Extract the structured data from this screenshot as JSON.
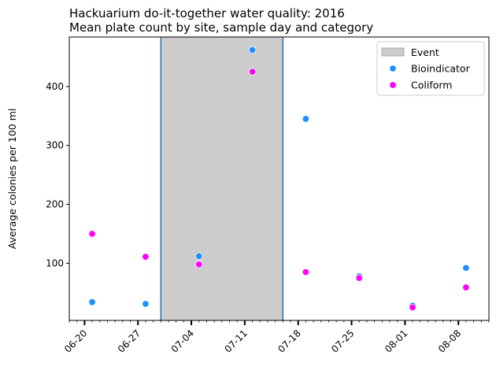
{
  "chart_data": {
    "type": "scatter",
    "title": "Hackuarium do-it-together water quality: 2016",
    "subtitle": "Mean plate count by site, sample day and category",
    "xlabel": "",
    "ylabel": "Average colonies per 100 ml",
    "xlim": [
      "2016-06-18",
      "2016-08-12"
    ],
    "ylim": [
      3,
      484
    ],
    "x_ticks": [
      "06-20",
      "06-27",
      "07-04",
      "07-11",
      "07-18",
      "07-25",
      "08-01",
      "08-08"
    ],
    "x_tick_dates": [
      "2016-06-20",
      "2016-06-27",
      "2016-07-04",
      "2016-07-11",
      "2016-07-18",
      "2016-07-25",
      "2016-08-01",
      "2016-08-08"
    ],
    "y_ticks": [
      100,
      200,
      300,
      400
    ],
    "grid": false,
    "legend_position": "top-right",
    "event": {
      "name": "Event",
      "start": "2016-06-30",
      "end": "2016-07-16",
      "color": "#cccccc",
      "edge_color": "#1f77b4"
    },
    "series": [
      {
        "name": "Bioindicator",
        "color": "#1e90ff",
        "points": [
          {
            "x": "2016-06-21",
            "y": 34
          },
          {
            "x": "2016-06-28",
            "y": 31
          },
          {
            "x": "2016-07-05",
            "y": 112
          },
          {
            "x": "2016-07-12",
            "y": 462
          },
          {
            "x": "2016-07-19",
            "y": 345
          },
          {
            "x": "2016-07-26",
            "y": 78
          },
          {
            "x": "2016-08-02",
            "y": 28
          },
          {
            "x": "2016-08-09",
            "y": 92
          }
        ]
      },
      {
        "name": "Coliform",
        "color": "#ff00ff",
        "points": [
          {
            "x": "2016-06-21",
            "y": 150
          },
          {
            "x": "2016-06-28",
            "y": 111
          },
          {
            "x": "2016-07-05",
            "y": 98
          },
          {
            "x": "2016-07-12",
            "y": 425
          },
          {
            "x": "2016-07-19",
            "y": 85
          },
          {
            "x": "2016-07-26",
            "y": 75
          },
          {
            "x": "2016-08-02",
            "y": 25
          },
          {
            "x": "2016-08-09",
            "y": 59
          }
        ]
      }
    ]
  }
}
